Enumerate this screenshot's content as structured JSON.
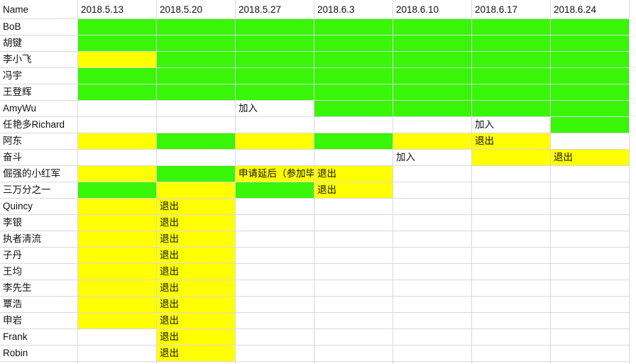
{
  "colors": {
    "green": "#39f507",
    "yellow": "#ffff00",
    "white": "#ffffff",
    "grid": "#d9d9d9"
  },
  "header": {
    "name_label": "Name",
    "dates": [
      "2018.5.13",
      "2018.5.20",
      "2018.5.27",
      "2018.6.3",
      "2018.6.10",
      "2018.6.17",
      "2018.6.24"
    ]
  },
  "rows": [
    {
      "name": "BoB",
      "cells": [
        {
          "c": "g"
        },
        {
          "c": "g"
        },
        {
          "c": "g"
        },
        {
          "c": "g"
        },
        {
          "c": "g"
        },
        {
          "c": "g"
        },
        {
          "c": "g"
        }
      ]
    },
    {
      "name": "胡键",
      "cells": [
        {
          "c": "g"
        },
        {
          "c": "g"
        },
        {
          "c": "g"
        },
        {
          "c": "g"
        },
        {
          "c": "g"
        },
        {
          "c": "g"
        },
        {
          "c": "g"
        }
      ]
    },
    {
      "name": "李小飞",
      "cells": [
        {
          "c": "y"
        },
        {
          "c": "g"
        },
        {
          "c": "g"
        },
        {
          "c": "g"
        },
        {
          "c": "g"
        },
        {
          "c": "g"
        },
        {
          "c": "g"
        }
      ]
    },
    {
      "name": "冯宇",
      "cells": [
        {
          "c": "g"
        },
        {
          "c": "g"
        },
        {
          "c": "g"
        },
        {
          "c": "g"
        },
        {
          "c": "g"
        },
        {
          "c": "g"
        },
        {
          "c": "g"
        }
      ]
    },
    {
      "name": "王登辉",
      "cells": [
        {
          "c": "g"
        },
        {
          "c": "g"
        },
        {
          "c": "g"
        },
        {
          "c": "g"
        },
        {
          "c": "g"
        },
        {
          "c": "g"
        },
        {
          "c": "g"
        }
      ]
    },
    {
      "name": "AmyWu",
      "cells": [
        {
          "c": "w"
        },
        {
          "c": "w"
        },
        {
          "c": "w",
          "t": "加入"
        },
        {
          "c": "g"
        },
        {
          "c": "g"
        },
        {
          "c": "g"
        },
        {
          "c": "g"
        }
      ]
    },
    {
      "name": "任艳多Richard",
      "cells": [
        {
          "c": "w"
        },
        {
          "c": "w"
        },
        {
          "c": "w"
        },
        {
          "c": "w"
        },
        {
          "c": "w"
        },
        {
          "c": "w",
          "t": "加入"
        },
        {
          "c": "g"
        }
      ]
    },
    {
      "name": "阿东",
      "cells": [
        {
          "c": "y"
        },
        {
          "c": "g"
        },
        {
          "c": "y"
        },
        {
          "c": "g"
        },
        {
          "c": "y"
        },
        {
          "c": "y",
          "t": "退出"
        },
        {
          "c": "w"
        }
      ]
    },
    {
      "name": "奋斗",
      "cells": [
        {
          "c": "w"
        },
        {
          "c": "w"
        },
        {
          "c": "w"
        },
        {
          "c": "w"
        },
        {
          "c": "w",
          "t": "加入"
        },
        {
          "c": "y"
        },
        {
          "c": "y",
          "t": "退出"
        }
      ]
    },
    {
      "name": "倔强的小红军",
      "cells": [
        {
          "c": "y"
        },
        {
          "c": "g"
        },
        {
          "c": "y",
          "t": "申请延后（参加毕"
        },
        {
          "c": "y",
          "t": "退出"
        },
        {
          "c": "w"
        },
        {
          "c": "w"
        },
        {
          "c": "w"
        }
      ]
    },
    {
      "name": "三万分之一",
      "cells": [
        {
          "c": "g"
        },
        {
          "c": "y"
        },
        {
          "c": "g"
        },
        {
          "c": "y",
          "t": "退出"
        },
        {
          "c": "w"
        },
        {
          "c": "w"
        },
        {
          "c": "w"
        }
      ]
    },
    {
      "name": "Quincy",
      "cells": [
        {
          "c": "y"
        },
        {
          "c": "y",
          "t": "退出"
        },
        {
          "c": "w"
        },
        {
          "c": "w"
        },
        {
          "c": "w"
        },
        {
          "c": "w"
        },
        {
          "c": "w"
        }
      ]
    },
    {
      "name": "李银",
      "cells": [
        {
          "c": "y"
        },
        {
          "c": "y",
          "t": "退出"
        },
        {
          "c": "w"
        },
        {
          "c": "w"
        },
        {
          "c": "w"
        },
        {
          "c": "w"
        },
        {
          "c": "w"
        }
      ]
    },
    {
      "name": "执者清流",
      "cells": [
        {
          "c": "y"
        },
        {
          "c": "y",
          "t": "退出"
        },
        {
          "c": "w"
        },
        {
          "c": "w"
        },
        {
          "c": "w"
        },
        {
          "c": "w"
        },
        {
          "c": "w"
        }
      ]
    },
    {
      "name": "子丹",
      "cells": [
        {
          "c": "y"
        },
        {
          "c": "y",
          "t": "退出"
        },
        {
          "c": "w"
        },
        {
          "c": "w"
        },
        {
          "c": "w"
        },
        {
          "c": "w"
        },
        {
          "c": "w"
        }
      ]
    },
    {
      "name": "王均",
      "cells": [
        {
          "c": "y"
        },
        {
          "c": "y",
          "t": "退出"
        },
        {
          "c": "w"
        },
        {
          "c": "w"
        },
        {
          "c": "w"
        },
        {
          "c": "w"
        },
        {
          "c": "w"
        }
      ]
    },
    {
      "name": "李先生",
      "cells": [
        {
          "c": "y"
        },
        {
          "c": "y",
          "t": "退出"
        },
        {
          "c": "w"
        },
        {
          "c": "w"
        },
        {
          "c": "w"
        },
        {
          "c": "w"
        },
        {
          "c": "w"
        }
      ]
    },
    {
      "name": "覃浩",
      "cells": [
        {
          "c": "y"
        },
        {
          "c": "y",
          "t": "退出"
        },
        {
          "c": "w"
        },
        {
          "c": "w"
        },
        {
          "c": "w"
        },
        {
          "c": "w"
        },
        {
          "c": "w"
        }
      ]
    },
    {
      "name": "申岩",
      "cells": [
        {
          "c": "y"
        },
        {
          "c": "y",
          "t": "退出"
        },
        {
          "c": "w"
        },
        {
          "c": "w"
        },
        {
          "c": "w"
        },
        {
          "c": "w"
        },
        {
          "c": "w"
        }
      ]
    },
    {
      "name": "Frank",
      "cells": [
        {
          "c": "w"
        },
        {
          "c": "y",
          "t": "退出"
        },
        {
          "c": "w"
        },
        {
          "c": "w"
        },
        {
          "c": "w"
        },
        {
          "c": "w"
        },
        {
          "c": "w"
        }
      ]
    },
    {
      "name": "Robin",
      "cells": [
        {
          "c": "w"
        },
        {
          "c": "y",
          "t": "退出"
        },
        {
          "c": "w"
        },
        {
          "c": "w"
        },
        {
          "c": "w"
        },
        {
          "c": "w"
        },
        {
          "c": "w"
        }
      ]
    },
    {
      "name": "",
      "cells": [
        {
          "c": "w"
        },
        {
          "c": "w"
        },
        {
          "c": "w"
        },
        {
          "c": "w"
        },
        {
          "c": "w"
        },
        {
          "c": "w"
        },
        {
          "c": "w"
        }
      ]
    }
  ]
}
